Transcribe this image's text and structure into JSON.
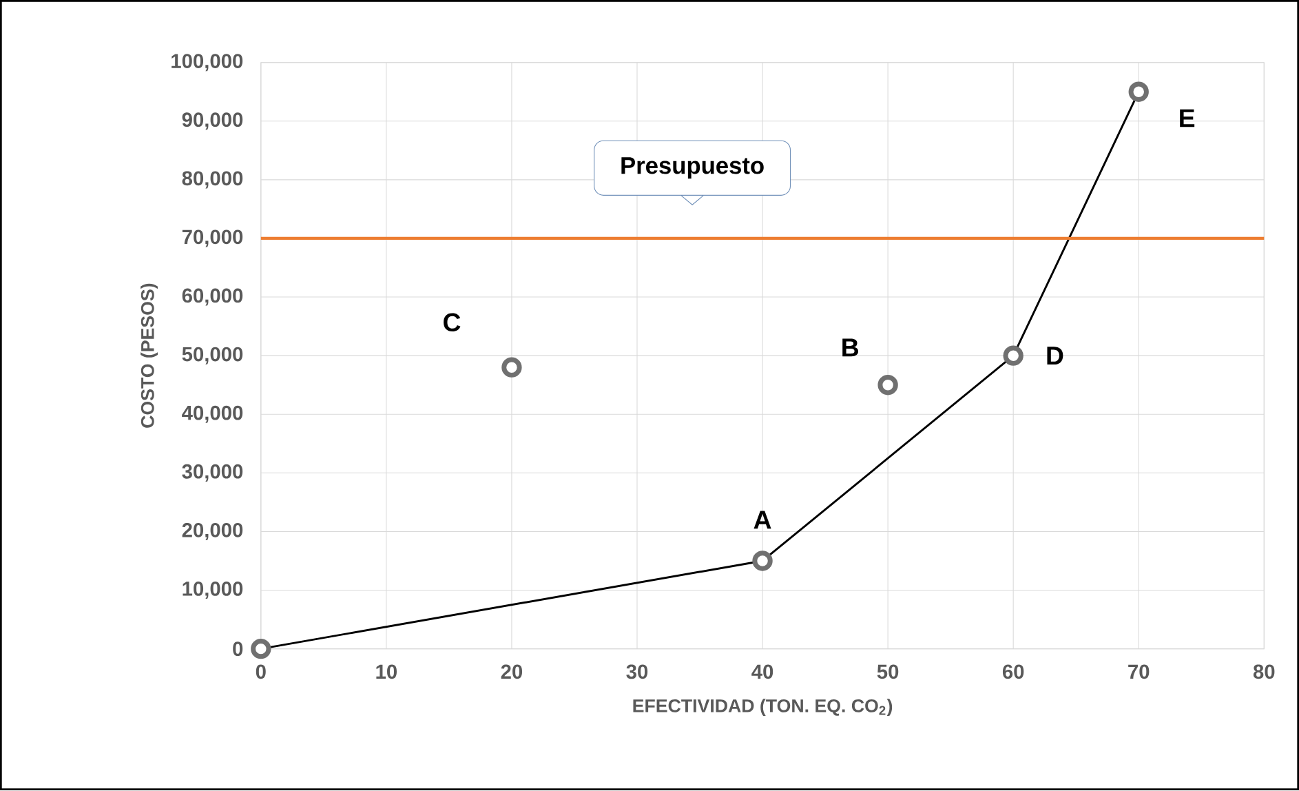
{
  "chart_data": {
    "type": "scatter",
    "xlabel": "EFECTIVIDAD (TON. EQ. CO$_{2}$)",
    "ylabel": "COSTO (PESOS)",
    "xlim": [
      0,
      80
    ],
    "xticks": [
      0,
      10,
      20,
      30,
      40,
      50,
      60,
      70,
      80
    ],
    "ylim": [
      0,
      100000
    ],
    "yticks": [
      {
        "value": 0,
        "label": "0"
      },
      {
        "value": 10000,
        "label": "10,000"
      },
      {
        "value": 20000,
        "label": "20,000"
      },
      {
        "value": 30000,
        "label": "30,000"
      },
      {
        "value": 40000,
        "label": "40,000"
      },
      {
        "value": 50000,
        "label": "50,000"
      },
      {
        "value": 60000,
        "label": "60,000"
      },
      {
        "value": 70000,
        "label": "70,000"
      },
      {
        "value": 80000,
        "label": "80,000"
      },
      {
        "value": 90000,
        "label": "90,000"
      },
      {
        "value": 100000,
        "label": "100,000"
      }
    ],
    "grid": true,
    "series": [
      {
        "type": "line",
        "color": "#000000",
        "x": [
          0,
          40,
          60,
          70
        ],
        "values": [
          0,
          15000,
          50000,
          95000
        ],
        "marker": "none"
      },
      {
        "color": "#707070",
        "x": [
          0,
          20,
          40,
          50,
          60,
          70
        ],
        "values": [
          0,
          48000,
          15000,
          45000,
          50000,
          95000
        ],
        "marker": "circle"
      }
    ],
    "ref_lines": [
      {
        "axis": "y",
        "value": 70000,
        "label": "Presupuesto",
        "color": "#ed7d31"
      }
    ],
    "annotations": [
      {
        "text": "A",
        "x": 40,
        "y": 15000
      },
      {
        "text": "B",
        "x": 50,
        "y": 45000
      },
      {
        "text": "C",
        "x": 20,
        "y": 48000
      },
      {
        "text": "D",
        "x": 60,
        "y": 50000
      },
      {
        "text": "E",
        "x": 70,
        "y": 95000
      }
    ]
  }
}
